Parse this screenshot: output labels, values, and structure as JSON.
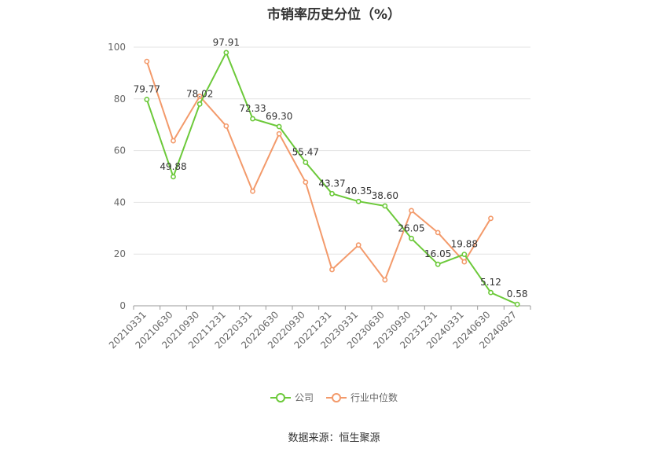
{
  "title": "市销率历史分位（%）",
  "source": "数据来源：恒生聚源",
  "chart_data": {
    "type": "line",
    "categories": [
      "20210331",
      "20210630",
      "20210930",
      "20211231",
      "20220331",
      "20220630",
      "20220930",
      "20221231",
      "20230331",
      "20230630",
      "20230930",
      "20231231",
      "20240331",
      "20240630",
      "20240827"
    ],
    "ylim": [
      0,
      100
    ],
    "yticks": [
      0,
      20,
      40,
      60,
      80,
      100
    ],
    "grid": true,
    "legend_position": "bottom",
    "series": [
      {
        "name": "公司",
        "color": "#6cc93a",
        "labels": true,
        "values": [
          79.77,
          49.88,
          78.02,
          97.91,
          72.33,
          69.3,
          55.47,
          43.37,
          40.35,
          38.6,
          26.05,
          16.05,
          19.88,
          5.12,
          0.58
        ],
        "value_labels": [
          "79.77",
          "49.88",
          "78.02",
          "97.91",
          "72.33",
          "69.30",
          "55.47",
          "43.37",
          "40.35",
          "38.60",
          "26.05",
          "16.05",
          "19.88",
          "5.12",
          "0.58"
        ]
      },
      {
        "name": "行业中位数",
        "color": "#f39a6b",
        "labels": false,
        "values": [
          94.5,
          63.8,
          81.0,
          69.5,
          44.3,
          66.5,
          47.8,
          14.0,
          23.5,
          10.0,
          36.8,
          28.3,
          17.0,
          33.8,
          null
        ]
      }
    ]
  }
}
